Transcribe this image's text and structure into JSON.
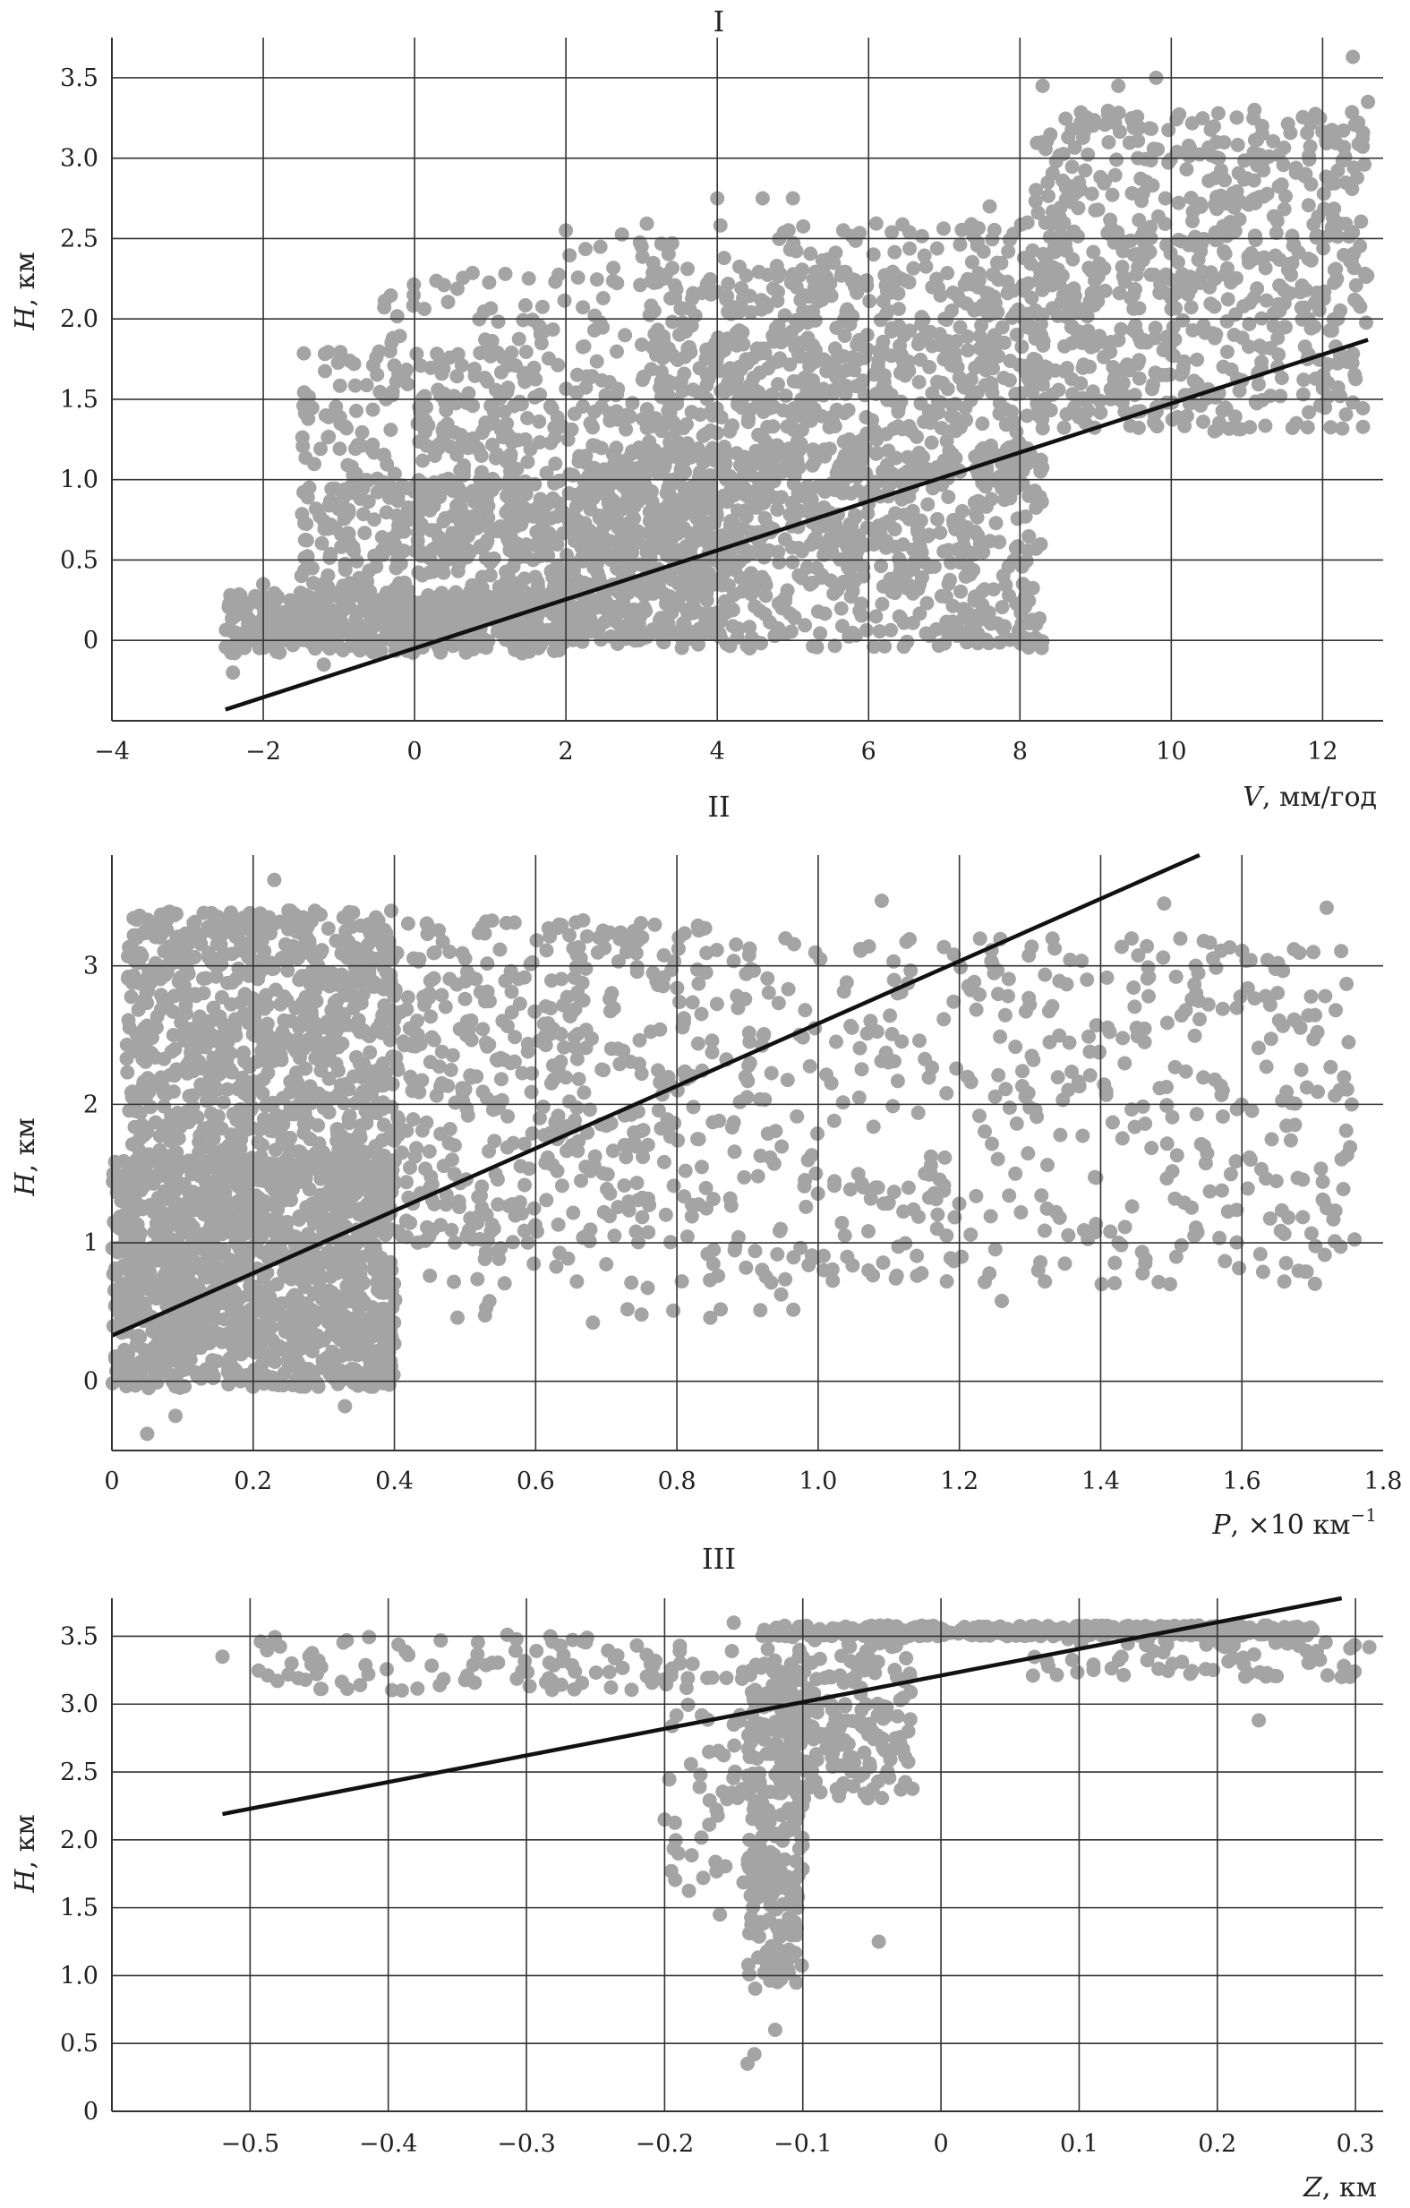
{
  "colors": {
    "points": "#a4a4a4",
    "fit_line": "#111111",
    "grid": "#333333",
    "axis": "#333333"
  },
  "chart_data": [
    {
      "type": "scatter",
      "title": "I",
      "xlabel_var": "V",
      "xlabel_unit": ", мм/год",
      "ylabel_var": "H",
      "ylabel_unit": ", км",
      "xlim": [
        -4,
        12.8
      ],
      "ylim": [
        -0.5,
        3.75
      ],
      "grid": true,
      "xticks": [
        -4,
        -2,
        0,
        2,
        4,
        6,
        8,
        10,
        12
      ],
      "xtick_labels": [
        "−4",
        "−2",
        "0",
        "2",
        "4",
        "6",
        "8",
        "10",
        "12"
      ],
      "yticks": [
        0,
        0.5,
        1.0,
        1.5,
        2.0,
        2.5,
        3.0,
        3.5
      ],
      "ytick_labels": [
        "0",
        "0.5",
        "1.0",
        "1.5",
        "2.0",
        "2.5",
        "3.0",
        "3.5"
      ],
      "fit_line": [
        [
          -2.5,
          -0.43
        ],
        [
          12.6,
          1.87
        ]
      ],
      "point_clusters": [
        {
          "x": [
            -2.5,
            2
          ],
          "y": [
            -0.08,
            0.3
          ],
          "n": 450
        },
        {
          "x": [
            -1.5,
            4
          ],
          "y": [
            0.0,
            1.0
          ],
          "n": 550
        },
        {
          "x": [
            2,
            8.3
          ],
          "y": [
            -0.05,
            1.2
          ],
          "n": 800
        },
        {
          "x": [
            0,
            6
          ],
          "y": [
            0.5,
            1.8
          ],
          "n": 400
        },
        {
          "x": [
            -1.5,
            1.5
          ],
          "y": [
            0.5,
            1.8
          ],
          "n": 180
        },
        {
          "x": [
            3,
            8.3
          ],
          "y": [
            1.0,
            2.3
          ],
          "n": 400
        },
        {
          "x": [
            8.2,
            12.6
          ],
          "y": [
            1.3,
            3.3
          ],
          "n": 650
        },
        {
          "x": [
            5,
            9
          ],
          "y": [
            1.5,
            2.6
          ],
          "n": 220
        },
        {
          "x": [
            2,
            5.5
          ],
          "y": [
            1.8,
            2.6
          ],
          "n": 80
        },
        {
          "x": [
            -0.5,
            2
          ],
          "y": [
            1.8,
            2.3
          ],
          "n": 40
        }
      ],
      "points": [
        [
          -2.4,
          -0.2
        ],
        [
          12.4,
          3.63
        ],
        [
          9.3,
          3.45
        ],
        [
          9.8,
          3.5
        ],
        [
          8.3,
          3.45
        ],
        [
          11.1,
          3.3
        ],
        [
          12.6,
          3.35
        ],
        [
          4,
          2.75
        ],
        [
          4.6,
          2.75
        ],
        [
          5,
          2.75
        ],
        [
          2,
          2.55
        ],
        [
          1.2,
          2.28
        ],
        [
          10.6,
          3.1
        ],
        [
          11.8,
          1.75
        ],
        [
          12.4,
          1.48
        ],
        [
          -2,
          0.35
        ],
        [
          -1.2,
          -0.15
        ],
        [
          8.1,
          2.6
        ],
        [
          3,
          2.45
        ],
        [
          -0.8,
          1.72
        ],
        [
          12.2,
          2.0
        ],
        [
          9.2,
          1.5
        ],
        [
          11.2,
          3.2
        ],
        [
          7.6,
          2.7
        ]
      ]
    },
    {
      "type": "scatter",
      "title": "II",
      "xlabel_var": "P",
      "xlabel_unit": ", ×10 км",
      "xlabel_sup": "−1",
      "ylabel_var": "H",
      "ylabel_unit": ", км",
      "xlim": [
        0,
        1.8
      ],
      "ylim": [
        -0.5,
        3.8
      ],
      "grid": true,
      "xticks": [
        0,
        0.2,
        0.4,
        0.6,
        0.8,
        1.0,
        1.2,
        1.4,
        1.6,
        1.8
      ],
      "xtick_labels": [
        "0",
        "0.2",
        "0.4",
        "0.6",
        "0.8",
        "1.0",
        "1.2",
        "1.4",
        "1.6",
        "1.8"
      ],
      "yticks": [
        0,
        1,
        2,
        3
      ],
      "ytick_labels": [
        "0",
        "1",
        "2",
        "3"
      ],
      "fit_line": [
        [
          0,
          0.33
        ],
        [
          1.54,
          3.8
        ]
      ],
      "point_clusters": [
        {
          "x": [
            0,
            0.4
          ],
          "y": [
            -0.05,
            1.6
          ],
          "n": 1200
        },
        {
          "x": [
            0.02,
            0.4
          ],
          "y": [
            1.4,
            3.4
          ],
          "n": 900
        },
        {
          "x": [
            0.4,
            0.85
          ],
          "y": [
            1.0,
            3.35
          ],
          "n": 450
        },
        {
          "x": [
            0.85,
            1.76
          ],
          "y": [
            0.7,
            3.2
          ],
          "n": 480
        },
        {
          "x": [
            0.4,
            1.0
          ],
          "y": [
            0.4,
            1.1
          ],
          "n": 50
        }
      ],
      "points": [
        [
          0.05,
          -0.38
        ],
        [
          0.09,
          -0.25
        ],
        [
          0.33,
          -0.18
        ],
        [
          0.23,
          3.62
        ],
        [
          1.09,
          3.47
        ],
        [
          1.49,
          3.45
        ],
        [
          1.72,
          3.42
        ],
        [
          0.73,
          0.52
        ],
        [
          0.53,
          0.53
        ],
        [
          0.32,
          0.45
        ],
        [
          1.26,
          0.58
        ],
        [
          1.66,
          0.72
        ],
        [
          1.72,
          1.25
        ]
      ]
    },
    {
      "type": "scatter",
      "title": "III",
      "xlabel_var": "Z",
      "xlabel_unit": ", км",
      "ylabel_var": "H",
      "ylabel_unit": ", км",
      "xlim": [
        -0.6,
        0.32
      ],
      "ylim": [
        0,
        3.78
      ],
      "grid": true,
      "xticks": [
        -0.5,
        -0.4,
        -0.3,
        -0.2,
        -0.1,
        0,
        0.1,
        0.2,
        0.3
      ],
      "xtick_labels": [
        "−0.5",
        "−0.4",
        "−0.3",
        "−0.2",
        "−0.1",
        "0",
        "0.1",
        "0.2",
        "0.3"
      ],
      "yticks": [
        0,
        0.5,
        1.0,
        1.5,
        2.0,
        2.5,
        3.0,
        3.5
      ],
      "ytick_labels": [
        "0",
        "0.5",
        "1.0",
        "1.5",
        "2.0",
        "2.5",
        "3.0",
        "3.5"
      ],
      "fit_line": [
        [
          -0.52,
          2.19
        ],
        [
          0.29,
          3.78
        ]
      ],
      "point_clusters": [
        {
          "x": [
            -0.13,
            0.27
          ],
          "y": [
            3.5,
            3.58
          ],
          "n": 420
        },
        {
          "x": [
            -0.14,
            -0.1
          ],
          "y": [
            0.9,
            3.3
          ],
          "n": 260
        },
        {
          "x": [
            -0.11,
            -0.02
          ],
          "y": [
            2.3,
            3.5
          ],
          "n": 180
        },
        {
          "x": [
            -0.2,
            -0.11
          ],
          "y": [
            1.6,
            3.0
          ],
          "n": 60
        },
        {
          "x": [
            -0.5,
            -0.12
          ],
          "y": [
            3.1,
            3.52
          ],
          "n": 110
        },
        {
          "x": [
            0.05,
            0.3
          ],
          "y": [
            3.2,
            3.5
          ],
          "n": 70
        }
      ],
      "points": [
        [
          -0.52,
          3.35
        ],
        [
          -0.47,
          3.3
        ],
        [
          -0.46,
          3.18
        ],
        [
          -0.43,
          3.47
        ],
        [
          -0.14,
          0.35
        ],
        [
          -0.135,
          0.42
        ],
        [
          -0.12,
          0.6
        ],
        [
          -0.045,
          1.25
        ],
        [
          0.23,
          2.88
        ],
        [
          0.31,
          3.42
        ],
        [
          0.29,
          3.2
        ],
        [
          -0.15,
          3.6
        ],
        [
          -0.2,
          2.15
        ],
        [
          -0.16,
          1.45
        ],
        [
          -0.19,
          1.9
        ]
      ]
    }
  ]
}
